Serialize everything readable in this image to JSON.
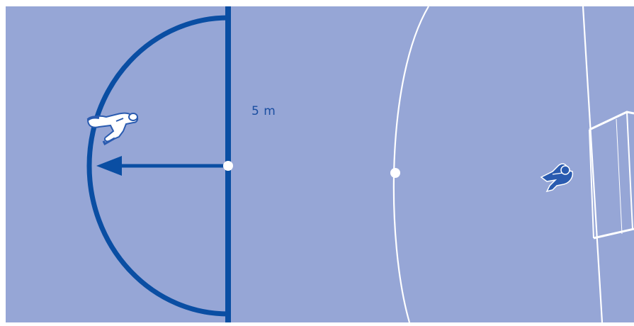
{
  "diagram": {
    "distance_label": "5 m",
    "colors": {
      "field": "#96a6d6",
      "marking_blue": "#0a4ea3",
      "pitch_line": "#ffffff",
      "player_blue": "#2a5bb0",
      "player_light": "#ffffff"
    },
    "icons": [
      "kicker-player-icon",
      "goalkeeper-icon",
      "goal-net-icon"
    ]
  }
}
